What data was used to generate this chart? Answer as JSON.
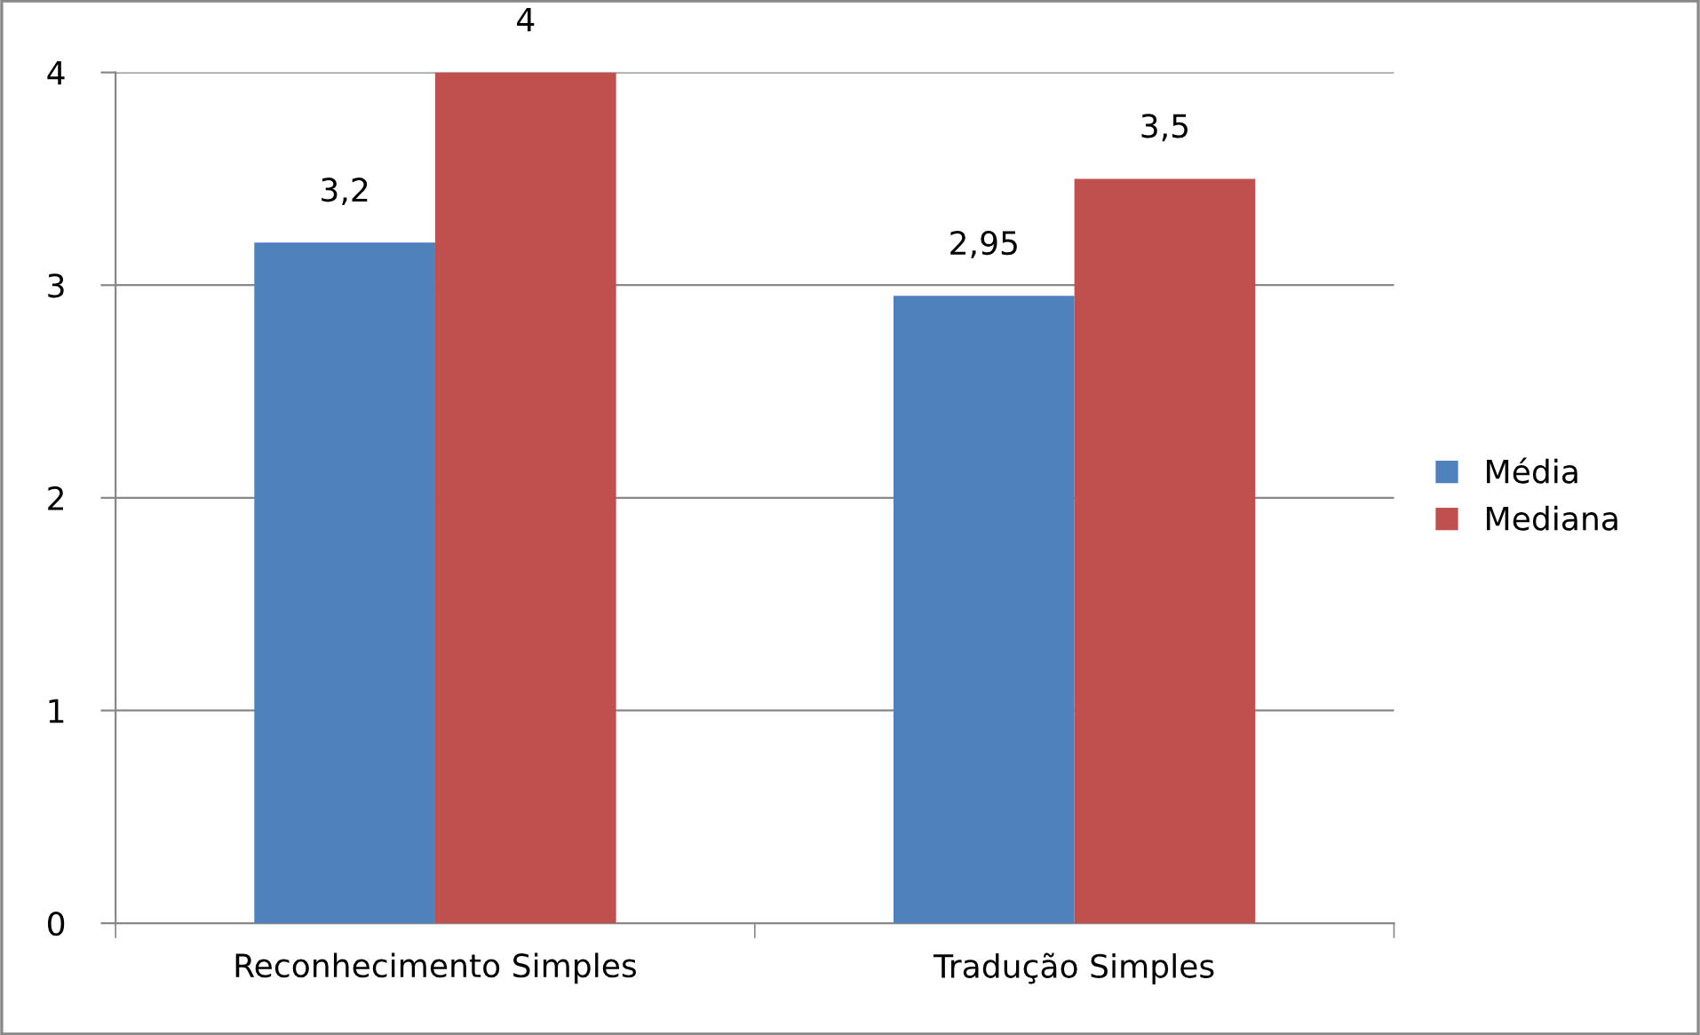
{
  "chart_data": {
    "type": "bar",
    "categories": [
      "Reconhecimento Simples",
      "Tradução Simples"
    ],
    "series": [
      {
        "name": "Média",
        "color": "#4f81bd",
        "values": [
          3.2,
          2.95
        ],
        "value_labels": [
          "3,2",
          "2,95"
        ]
      },
      {
        "name": "Mediana",
        "color": "#c0504d",
        "values": [
          4,
          3.5
        ],
        "value_labels": [
          "4",
          "3,5"
        ]
      }
    ],
    "ylim": [
      0,
      4
    ],
    "yticks": [
      0,
      1,
      2,
      3,
      4
    ],
    "grid": "y",
    "legend": "right"
  }
}
